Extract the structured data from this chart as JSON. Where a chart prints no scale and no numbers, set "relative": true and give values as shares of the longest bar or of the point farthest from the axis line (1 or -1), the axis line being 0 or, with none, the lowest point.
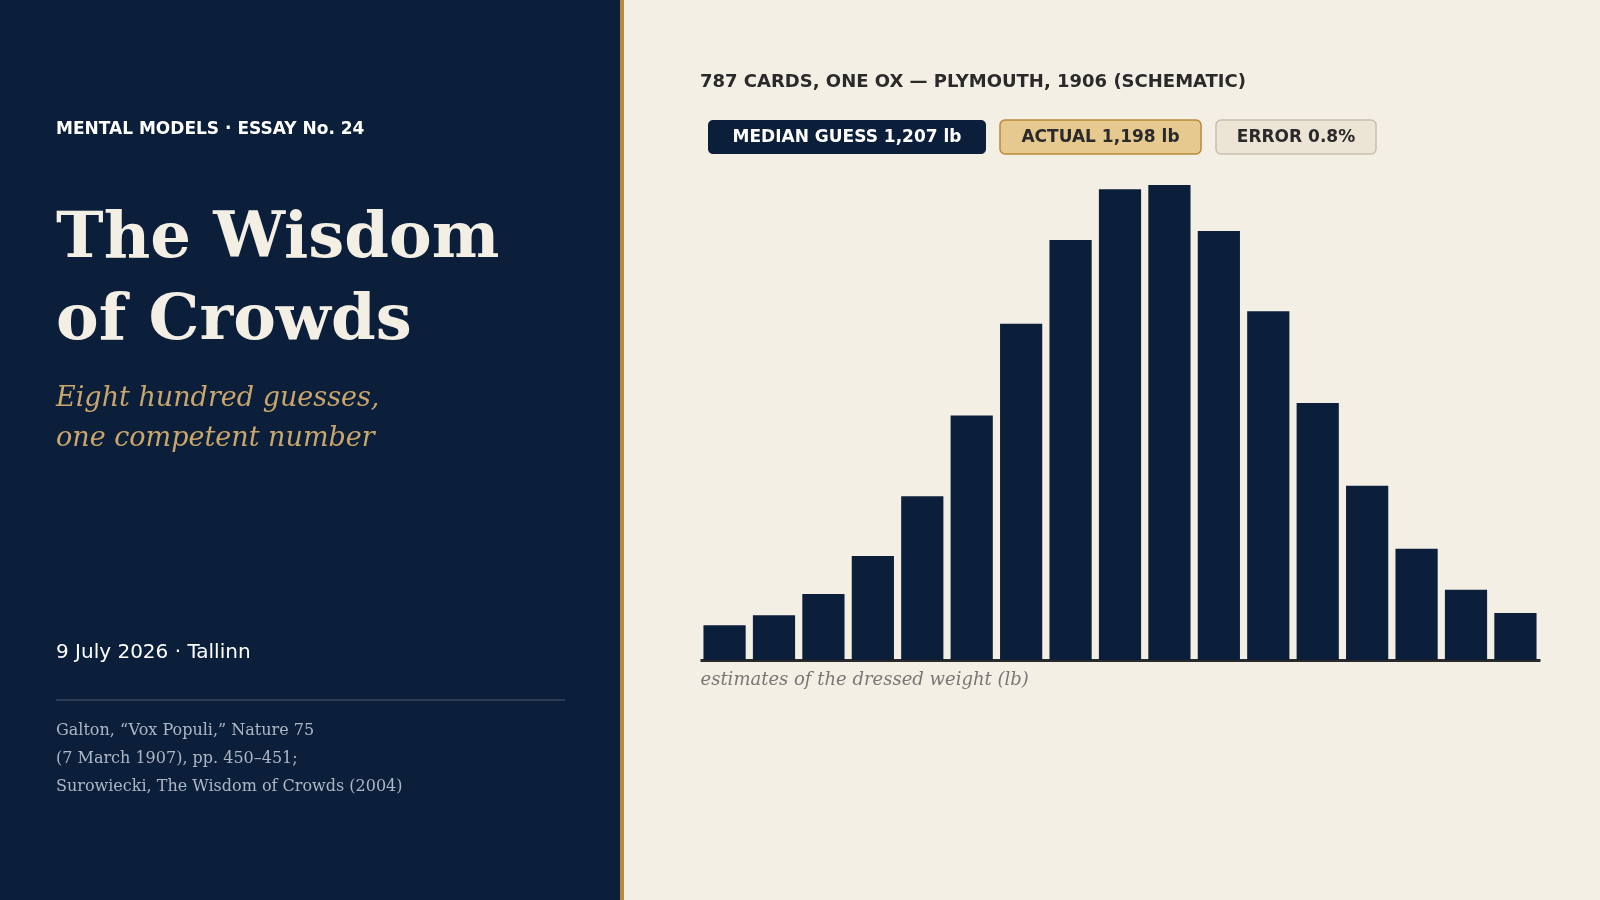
{
  "chart_data": {
    "type": "bar",
    "title": "The Wisdom of Crowds",
    "subtitle": "Eight hundred guesses, one competent number",
    "xlabel": "estimates of the dressed weight (lb)",
    "categories": [
      null,
      null,
      null,
      null,
      null,
      null,
      null,
      null,
      null,
      null,
      null,
      null,
      null,
      null,
      null,
      null,
      null
    ],
    "relative": true,
    "color": "#0c1f3a",
    "values": [
      0.073,
      0.094,
      0.139,
      0.219,
      0.345,
      0.515,
      0.708,
      0.884,
      0.991,
      1,
      0.903,
      0.734,
      0.541,
      0.367,
      0.234,
      0.148,
      0.099
    ],
    "annotations": [
      "MENTAL MODELS · ESSAY No. 24",
      "9 July 2026  ·  Tallinn",
      "Galton, “Vox Populi,” Nature 75",
      "(7 March 1907), pp. 450–451;",
      "Surowiecki, The Wisdom of Crowds (2004)",
      "787 CARDS, ONE OX — PLYMOUTH, 1906 (SCHEMATIC)",
      "MEDIAN GUESS  1,207 lb",
      "ACTUAL  1,198 lb",
      "ERROR  0.8%"
    ]
  }
}
